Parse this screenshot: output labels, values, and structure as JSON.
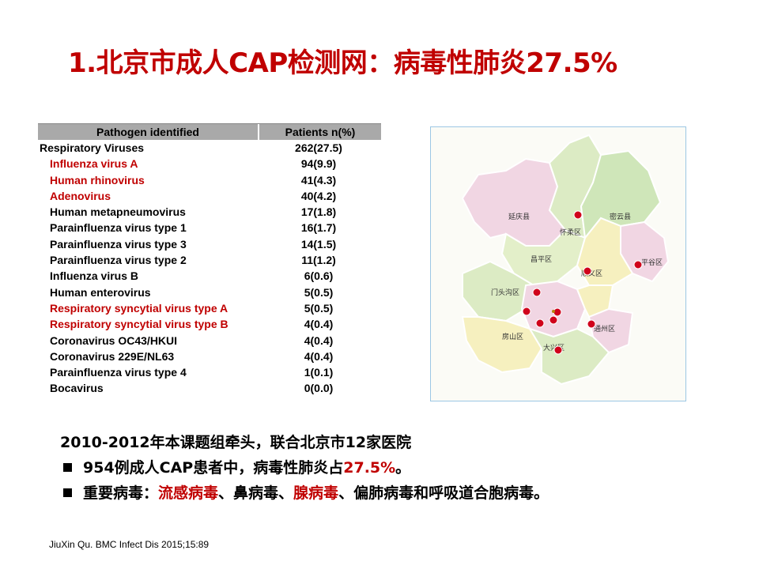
{
  "slide": {
    "title": "1.北京市成人CAP检测网：病毒性肺炎27.5%"
  },
  "table": {
    "headers": [
      "Pathogen identified",
      "Patients n(%)"
    ],
    "rows": [
      {
        "name": "Respiratory  Viruses",
        "value": "262(27.5)",
        "color": "#000000",
        "group": true
      },
      {
        "name": "Influenza virus A",
        "value": "94(9.9)",
        "color": "#c00000",
        "group": false
      },
      {
        "name": "Human rhinovirus",
        "value": "41(4.3)",
        "color": "#c00000",
        "group": false
      },
      {
        "name": "Adenovirus",
        "value": "40(4.2)",
        "color": "#c00000",
        "group": false
      },
      {
        "name": "Human metapneumovirus",
        "value": "17(1.8)",
        "color": "#000000",
        "group": false
      },
      {
        "name": "Parainfluenza virus type 1",
        "value": "16(1.7)",
        "color": "#000000",
        "group": false
      },
      {
        "name": "Parainfluenza virus type 3",
        "value": "14(1.5)",
        "color": "#000000",
        "group": false
      },
      {
        "name": "Parainfluenza virus type 2",
        "value": "11(1.2)",
        "color": "#000000",
        "group": false
      },
      {
        "name": "Influenza virus B",
        "value": "6(0.6)",
        "color": "#000000",
        "group": false
      },
      {
        "name": "Human enterovirus",
        "value": "5(0.5)",
        "color": "#000000",
        "group": false
      },
      {
        "name": "Respiratory syncytial virus type A",
        "value": "5(0.5)",
        "color": "#c00000",
        "group": false
      },
      {
        "name": "Respiratory syncytial virus type B",
        "value": "4(0.4)",
        "color": "#c00000",
        "group": false
      },
      {
        "name": "Coronavirus OC43/HKUI",
        "value": "4(0.4)",
        "color": "#000000",
        "group": false
      },
      {
        "name": "Coronavirus 229E/NL63",
        "value": "4(0.4)",
        "color": "#000000",
        "group": false
      },
      {
        "name": "Parainfluenza virus type 4",
        "value": "1(0.1)",
        "color": "#000000",
        "group": false
      },
      {
        "name": "Bocavirus",
        "value": "0(0.0)",
        "color": "#000000",
        "group": false
      }
    ]
  },
  "map": {
    "district_labels": [
      "延庆县",
      "怀柔区",
      "密云县",
      "昌平区",
      "顺义区",
      "平谷区",
      "门头沟区",
      "房山区",
      "通州区",
      "大兴区"
    ],
    "marker_color": "#d0021b"
  },
  "bullets": {
    "intro": "2010-2012年本课题组牵头，联合北京市12家医院",
    "b1_pre": "954例成人CAP患者中，病毒性肺炎占",
    "b1_highlight": "27.5%",
    "b1_post": "。",
    "b2_pre": "重要病毒：",
    "b2_red1": "流感病毒",
    "b2_mid1": "、鼻病毒、",
    "b2_red2": "腺病毒",
    "b2_post": "、偏肺病毒和呼吸道合胞病毒。"
  },
  "citation": "JiuXin Qu. BMC Infect Dis 2015;15:89"
}
